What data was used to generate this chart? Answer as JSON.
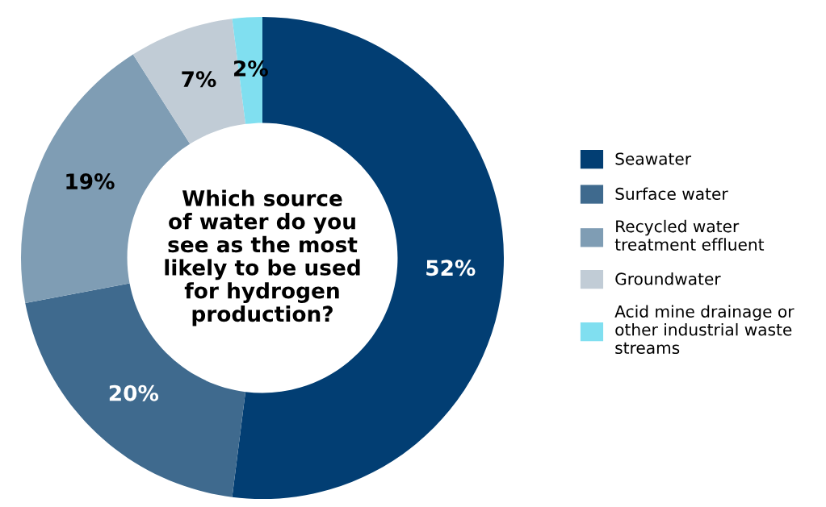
{
  "chart_data": {
    "type": "donut",
    "title": "Which source\nof water do you\nsee as the most\nlikely to be used\nfor hydrogen\nproduction?",
    "categories": [
      "Seawater",
      "Surface water",
      "Recycled water\ntreatment effluent",
      "Groundwater",
      "Acid mine drainage or\nother industrial waste\nstreams"
    ],
    "values": [
      52,
      20,
      19,
      7,
      2
    ],
    "value_labels": [
      "52%",
      "20%",
      "19%",
      "7%",
      "2%"
    ],
    "colors": [
      "#023e73",
      "#3f6a8e",
      "#7f9db4",
      "#c1ccd6",
      "#80dff0"
    ],
    "legend": "right"
  }
}
